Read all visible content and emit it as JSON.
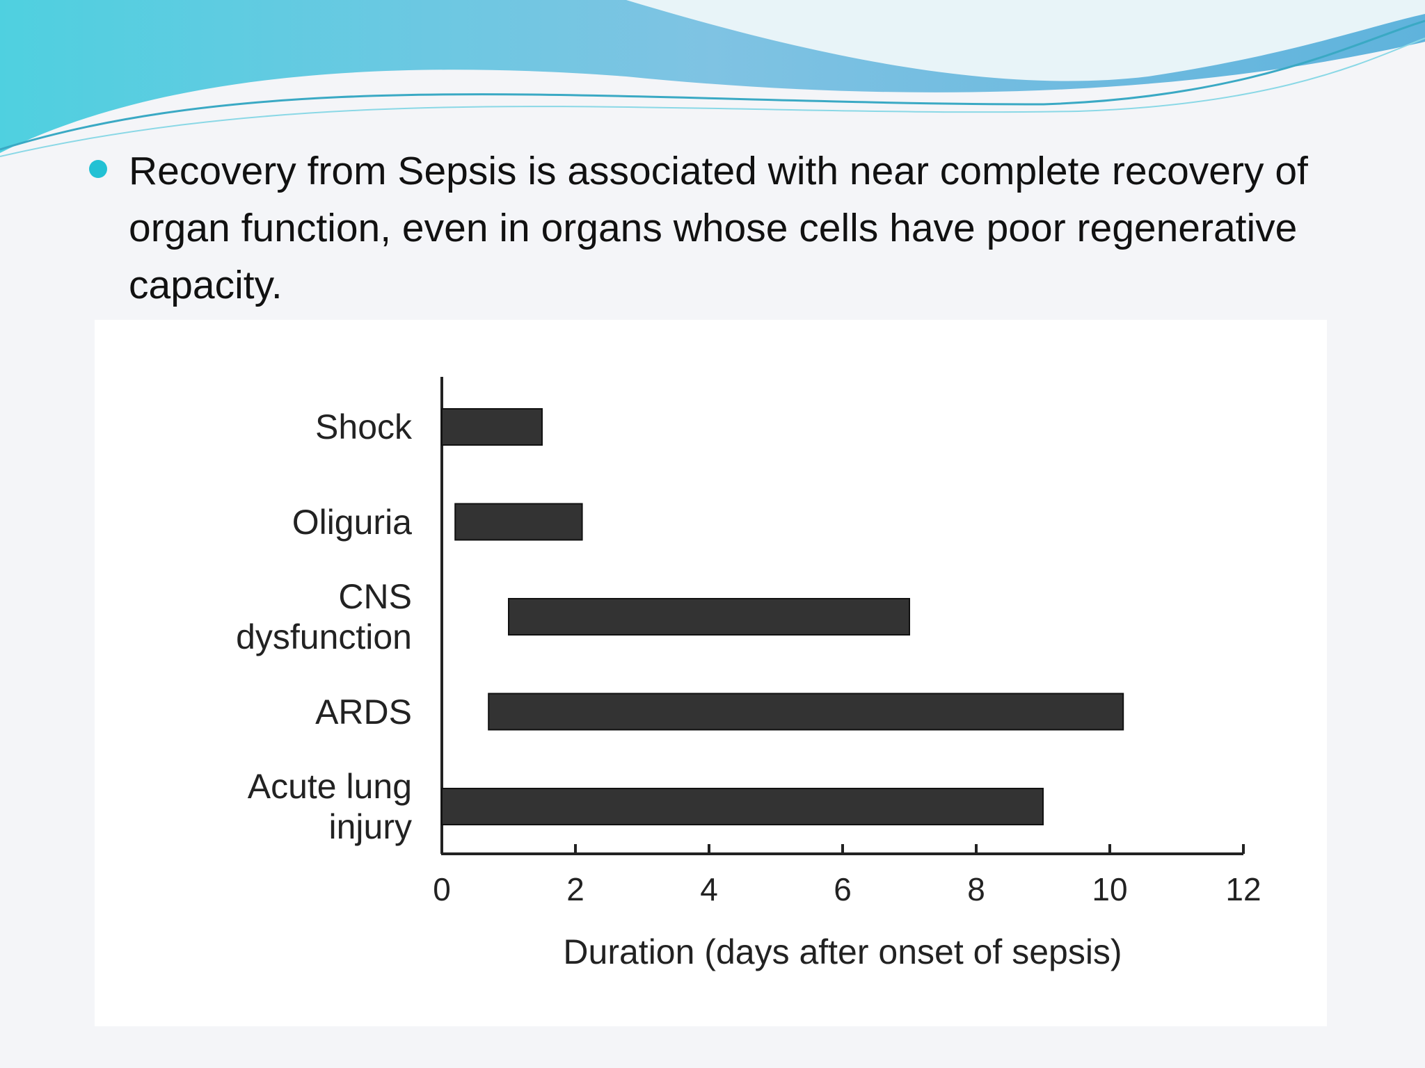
{
  "slide": {
    "bullet": "Recovery from Sepsis is associated with near complete recovery of organ function, even in organs whose cells have poor regenerative capacity."
  },
  "chart_data": {
    "type": "range-bar",
    "categories": [
      "Shock",
      "Oliguria",
      "CNS dysfunction",
      "ARDS",
      "Acute lung injury"
    ],
    "low": [
      0,
      0.2,
      1.0,
      0.7,
      0
    ],
    "high": [
      1.5,
      2.1,
      7.0,
      10.2,
      9.0
    ],
    "color": "#333333",
    "xlabel": "Duration (days after onset of sepsis)",
    "xlim": [
      0,
      12
    ],
    "xticks": [
      0,
      2,
      4,
      6,
      8,
      10,
      12
    ]
  }
}
